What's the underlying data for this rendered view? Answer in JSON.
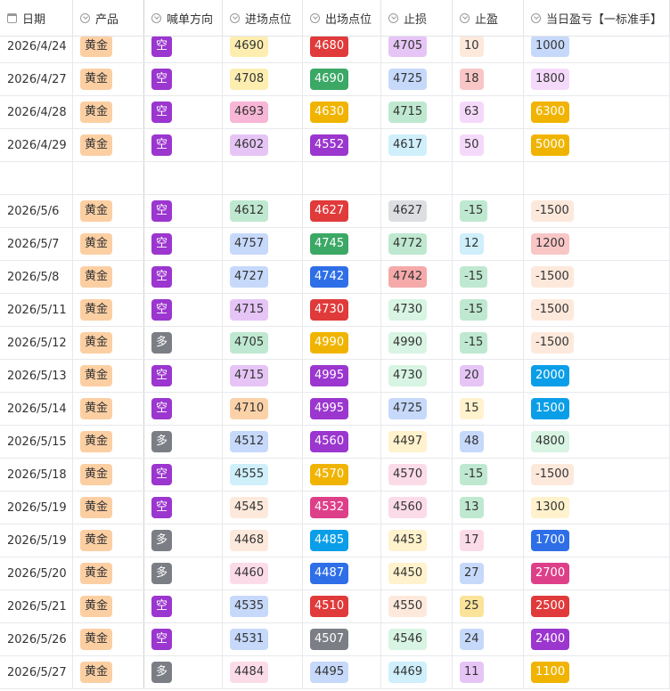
{
  "header": [
    "日期",
    "产品",
    "喊单方向",
    "进场点位",
    "出场点位",
    "止损",
    "止盈",
    "当日盈亏【一标准手】"
  ],
  "rows": [
    [
      "2026/4/24",
      "黄金",
      "空",
      4690,
      4680,
      4705,
      10,
      1000
    ],
    [
      "2026/4/27",
      "黄金",
      "空",
      4708,
      4690,
      4725,
      18,
      1800
    ],
    [
      "2026/4/28",
      "黄金",
      "空",
      4693,
      4630,
      4715,
      63,
      6300
    ],
    [
      "2026/4/29",
      "黄金",
      "空",
      4602,
      4552,
      4617,
      50,
      5000
    ],
    [],
    [
      "2026/5/6",
      "黄金",
      "空",
      4612,
      4627,
      4627,
      -15,
      -1500
    ],
    [
      "2026/5/7",
      "黄金",
      "空",
      4757,
      4745,
      4772,
      12,
      1200
    ],
    [
      "2026/5/8",
      "黄金",
      "空",
      4727,
      4742,
      4742,
      -15,
      -1500
    ],
    [
      "2026/5/11",
      "黄金",
      "空",
      4715,
      4730,
      4730,
      -15,
      -1500
    ],
    [
      "2026/5/12",
      "黄金",
      "多",
      4705,
      4990,
      4990,
      -15,
      -1500
    ],
    [
      "2026/5/13",
      "黄金",
      "空",
      4715,
      4995,
      4730,
      20,
      2000
    ],
    [
      "2026/5/14",
      "黄金",
      "空",
      4710,
      4995,
      4725,
      15,
      1500
    ],
    [
      "2026/5/15",
      "黄金",
      "多",
      4512,
      4560,
      4497,
      48,
      4800
    ],
    [
      "2026/5/18",
      "黄金",
      "空",
      4555,
      4570,
      4570,
      -15,
      -1500
    ],
    [
      "2026/5/19",
      "黄金",
      "空",
      4545,
      4532,
      4560,
      13,
      1300
    ],
    [
      "2026/5/19",
      "黄金",
      "多",
      4468,
      4485,
      4453,
      17,
      1700
    ],
    [
      "2026/5/20",
      "黄金",
      "多",
      4460,
      4487,
      4450,
      27,
      2700
    ],
    [
      "2026/5/21",
      "黄金",
      "空",
      4535,
      4510,
      4550,
      25,
      2500
    ],
    [
      "2026/5/26",
      "黄金",
      "空",
      4531,
      4507,
      4546,
      24,
      2400
    ],
    [
      "2026/5/27",
      "黄金",
      "多",
      4484,
      4495,
      4469,
      11,
      1100
    ]
  ]
}
